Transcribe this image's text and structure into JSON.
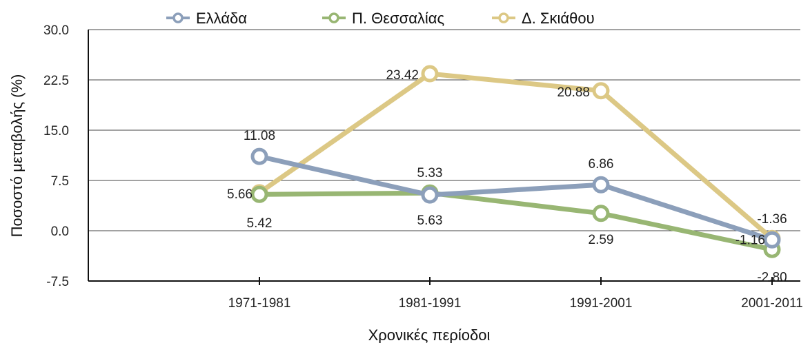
{
  "chart_data": {
    "type": "line",
    "categories": [
      "1971-1981",
      "1981-1991",
      "1991-2001",
      "2001-2011"
    ],
    "series": [
      {
        "name": "Ελλάδα",
        "color": "#8c9fba",
        "values": [
          11.08,
          5.33,
          6.86,
          -1.36
        ],
        "labels": [
          "11.08",
          "5.33",
          "6.86",
          "-1.36"
        ]
      },
      {
        "name": "Π. Θεσσαλίας",
        "color": "#98b673",
        "values": [
          5.42,
          5.63,
          2.59,
          -2.8
        ],
        "labels": [
          "5.42",
          "5.63",
          "2.59",
          "-2.80"
        ]
      },
      {
        "name": "Δ. Σκιάθου",
        "color": "#dcc885",
        "values": [
          5.66,
          23.42,
          20.88,
          -1.16
        ],
        "labels": [
          "5.66",
          "23.42",
          "20.88",
          "-1.16"
        ]
      }
    ],
    "xlabel": "Χρονικές περίοδοι",
    "ylabel": "Ποσοστό μεταβολής (%)",
    "ylim": [
      -7.5,
      30.0
    ],
    "yticks": [
      "30.0",
      "22.5",
      "15.0",
      "7.5",
      "0.0",
      "-7.5"
    ],
    "grid": true,
    "legend_position": "top"
  }
}
